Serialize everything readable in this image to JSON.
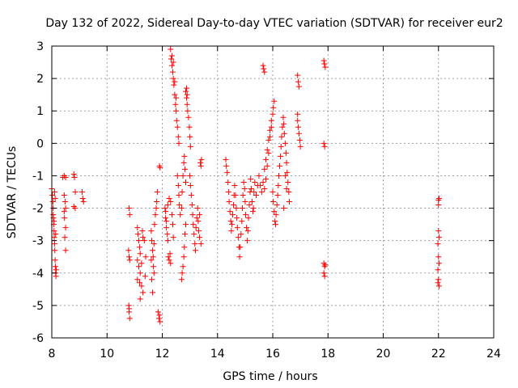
{
  "chart_data": {
    "type": "scatter",
    "title": "Day 132 of 2022, Sidereal Day-to-day VTEC variation (SDTVAR) for receiver eur2",
    "xlabel": "GPS time / hours",
    "ylabel": "SDTVAR / TECUs",
    "xlim": [
      8,
      24
    ],
    "ylim": [
      -6,
      3
    ],
    "xticks": [
      8,
      10,
      12,
      14,
      16,
      18,
      20,
      22,
      24
    ],
    "yticks": [
      -6,
      -5,
      -4,
      -3,
      -2,
      -1,
      0,
      1,
      2,
      3
    ],
    "grid": true,
    "marker": "plus",
    "color": "#ff0000",
    "series": [
      {
        "name": "SDTVAR",
        "points": [
          [
            8.0,
            -1.4
          ],
          [
            8.02,
            -1.6
          ],
          [
            8.04,
            -1.8
          ],
          [
            8.05,
            -2.0
          ],
          [
            8.06,
            -2.3
          ],
          [
            8.07,
            -2.5
          ],
          [
            8.08,
            -2.7
          ],
          [
            8.09,
            -2.9
          ],
          [
            8.1,
            -3.1
          ],
          [
            8.11,
            -3.3
          ],
          [
            8.12,
            -3.6
          ],
          [
            8.13,
            -3.8
          ],
          [
            8.14,
            -4.0
          ],
          [
            8.15,
            -4.1
          ],
          [
            8.05,
            -2.2
          ],
          [
            8.08,
            -2.4
          ],
          [
            8.1,
            -1.5
          ],
          [
            8.12,
            -1.7
          ],
          [
            8.14,
            -2.8
          ],
          [
            8.16,
            -3.9
          ],
          [
            8.4,
            -1.05
          ],
          [
            8.45,
            -1.0
          ],
          [
            8.5,
            -1.05
          ],
          [
            8.45,
            -1.6
          ],
          [
            8.48,
            -1.8
          ],
          [
            8.5,
            -2.0
          ],
          [
            8.46,
            -2.3
          ],
          [
            8.5,
            -2.6
          ],
          [
            8.47,
            -2.9
          ],
          [
            8.5,
            -3.3
          ],
          [
            8.45,
            -2.1
          ],
          [
            8.8,
            -0.95
          ],
          [
            8.82,
            -1.05
          ],
          [
            8.85,
            -1.5
          ],
          [
            8.8,
            -1.95
          ],
          [
            8.85,
            -2.0
          ],
          [
            9.1,
            -1.5
          ],
          [
            9.12,
            -1.7
          ],
          [
            9.15,
            -1.8
          ],
          [
            10.8,
            -2.0
          ],
          [
            10.82,
            -2.2
          ],
          [
            10.78,
            -3.3
          ],
          [
            10.8,
            -3.5
          ],
          [
            10.82,
            -3.6
          ],
          [
            10.79,
            -5.0
          ],
          [
            10.8,
            -5.2
          ],
          [
            10.82,
            -5.4
          ],
          [
            10.8,
            -5.1
          ],
          [
            11.1,
            -2.6
          ],
          [
            11.12,
            -2.8
          ],
          [
            11.15,
            -3.0
          ],
          [
            11.18,
            -3.2
          ],
          [
            11.2,
            -3.4
          ],
          [
            11.1,
            -3.6
          ],
          [
            11.15,
            -3.8
          ],
          [
            11.2,
            -4.0
          ],
          [
            11.1,
            -4.2
          ],
          [
            11.25,
            -4.4
          ],
          [
            11.3,
            -4.6
          ],
          [
            11.2,
            -4.8
          ],
          [
            11.35,
            -3.0
          ],
          [
            11.3,
            -2.9
          ],
          [
            11.4,
            -3.5
          ],
          [
            11.38,
            -4.1
          ],
          [
            11.25,
            -3.7
          ],
          [
            11.18,
            -4.3
          ],
          [
            11.28,
            -2.7
          ],
          [
            11.6,
            -2.7
          ],
          [
            11.62,
            -3.0
          ],
          [
            11.65,
            -3.3
          ],
          [
            11.6,
            -3.6
          ],
          [
            11.68,
            -3.8
          ],
          [
            11.7,
            -4.0
          ],
          [
            11.62,
            -4.2
          ],
          [
            11.65,
            -4.6
          ],
          [
            11.72,
            -2.5
          ],
          [
            11.75,
            -2.2
          ],
          [
            11.78,
            -2.0
          ],
          [
            11.8,
            -1.8
          ],
          [
            11.82,
            -1.5
          ],
          [
            11.7,
            -3.1
          ],
          [
            11.67,
            -3.5
          ],
          [
            11.9,
            -0.7
          ],
          [
            11.92,
            -0.75
          ],
          [
            11.9,
            -5.3
          ],
          [
            11.92,
            -5.5
          ],
          [
            11.88,
            -5.4
          ],
          [
            11.85,
            -5.2
          ],
          [
            12.1,
            -2.0
          ],
          [
            12.12,
            -2.3
          ],
          [
            12.15,
            -2.6
          ],
          [
            12.18,
            -2.8
          ],
          [
            12.2,
            -3.0
          ],
          [
            12.22,
            -3.5
          ],
          [
            12.25,
            -3.6
          ],
          [
            12.28,
            -3.4
          ],
          [
            12.3,
            -3.7
          ],
          [
            12.12,
            -2.1
          ],
          [
            12.15,
            -2.4
          ],
          [
            12.2,
            -1.9
          ],
          [
            12.25,
            -1.7
          ],
          [
            12.3,
            -1.8
          ],
          [
            12.35,
            -2.2
          ],
          [
            12.38,
            -2.5
          ],
          [
            12.4,
            -2.9
          ],
          [
            12.3,
            2.9
          ],
          [
            12.32,
            2.6
          ],
          [
            12.35,
            2.4
          ],
          [
            12.38,
            2.2
          ],
          [
            12.4,
            2.0
          ],
          [
            12.42,
            1.8
          ],
          [
            12.45,
            1.5
          ],
          [
            12.48,
            1.2
          ],
          [
            12.5,
            1.0
          ],
          [
            12.52,
            0.7
          ],
          [
            12.55,
            0.5
          ],
          [
            12.58,
            0.2
          ],
          [
            12.6,
            0.0
          ],
          [
            12.35,
            2.7
          ],
          [
            12.4,
            2.5
          ],
          [
            12.45,
            1.9
          ],
          [
            12.5,
            1.4
          ],
          [
            12.55,
            -1.0
          ],
          [
            12.58,
            -1.3
          ],
          [
            12.6,
            -1.6
          ],
          [
            12.62,
            -1.9
          ],
          [
            12.65,
            -2.2
          ],
          [
            12.7,
            -2.0
          ],
          [
            12.72,
            -1.5
          ],
          [
            12.75,
            -1.0
          ],
          [
            12.78,
            -0.6
          ],
          [
            12.8,
            -0.4
          ],
          [
            12.82,
            -0.8
          ],
          [
            12.85,
            -1.2
          ],
          [
            12.7,
            -4.2
          ],
          [
            12.72,
            -4.0
          ],
          [
            12.75,
            -3.8
          ],
          [
            12.78,
            -3.5
          ],
          [
            12.8,
            -3.2
          ],
          [
            12.82,
            -2.8
          ],
          [
            12.85,
            -2.5
          ],
          [
            12.85,
            1.6
          ],
          [
            12.88,
            1.4
          ],
          [
            12.9,
            1.2
          ],
          [
            12.92,
            1.0
          ],
          [
            12.95,
            0.8
          ],
          [
            12.98,
            0.5
          ],
          [
            13.0,
            0.2
          ],
          [
            13.02,
            -0.1
          ],
          [
            12.88,
            1.7
          ],
          [
            12.9,
            1.5
          ],
          [
            13.0,
            -1.0
          ],
          [
            13.02,
            -1.3
          ],
          [
            13.05,
            -1.6
          ],
          [
            13.08,
            -1.9
          ],
          [
            13.1,
            -2.2
          ],
          [
            13.12,
            -2.5
          ],
          [
            13.15,
            -2.8
          ],
          [
            13.18,
            -3.1
          ],
          [
            13.2,
            -3.3
          ],
          [
            13.22,
            -2.6
          ],
          [
            13.25,
            -2.3
          ],
          [
            13.28,
            -2.0
          ],
          [
            13.3,
            -2.4
          ],
          [
            13.32,
            -2.7
          ],
          [
            13.35,
            -2.2
          ],
          [
            13.38,
            -0.6
          ],
          [
            13.4,
            -0.7
          ],
          [
            13.42,
            -0.5
          ],
          [
            13.35,
            -2.9
          ],
          [
            13.4,
            -3.1
          ],
          [
            14.3,
            -0.5
          ],
          [
            14.32,
            -0.7
          ],
          [
            14.35,
            -0.9
          ],
          [
            14.38,
            -1.2
          ],
          [
            14.4,
            -1.5
          ],
          [
            14.42,
            -1.8
          ],
          [
            14.45,
            -2.1
          ],
          [
            14.48,
            -2.4
          ],
          [
            14.5,
            -2.7
          ],
          [
            14.52,
            -2.5
          ],
          [
            14.55,
            -2.2
          ],
          [
            14.58,
            -1.9
          ],
          [
            14.6,
            -1.6
          ],
          [
            14.62,
            -1.3
          ],
          [
            14.65,
            -1.6
          ],
          [
            14.68,
            -2.0
          ],
          [
            14.7,
            -2.3
          ],
          [
            14.72,
            -2.6
          ],
          [
            14.75,
            -2.9
          ],
          [
            14.78,
            -3.2
          ],
          [
            14.8,
            -3.5
          ],
          [
            14.82,
            -3.2
          ],
          [
            14.85,
            -2.8
          ],
          [
            14.88,
            -2.4
          ],
          [
            14.9,
            -2.0
          ],
          [
            14.92,
            -1.6
          ],
          [
            14.95,
            -1.2
          ],
          [
            14.98,
            -1.4
          ],
          [
            15.0,
            -1.8
          ],
          [
            15.02,
            -2.2
          ],
          [
            15.05,
            -2.6
          ],
          [
            15.08,
            -3.0
          ],
          [
            15.1,
            -2.7
          ],
          [
            15.12,
            -2.3
          ],
          [
            15.15,
            -1.9
          ],
          [
            15.18,
            -1.5
          ],
          [
            15.2,
            -1.1
          ],
          [
            15.22,
            -1.4
          ],
          [
            15.25,
            -1.8
          ],
          [
            15.28,
            -2.1
          ],
          [
            15.3,
            -2.0
          ],
          [
            15.32,
            -1.5
          ],
          [
            15.35,
            -1.2
          ],
          [
            15.4,
            -1.6
          ],
          [
            15.45,
            -1.3
          ],
          [
            15.65,
            2.4
          ],
          [
            15.67,
            2.3
          ],
          [
            15.7,
            2.2
          ],
          [
            15.5,
            -1.0
          ],
          [
            15.55,
            -1.3
          ],
          [
            15.6,
            -1.5
          ],
          [
            15.65,
            -1.2
          ],
          [
            15.7,
            -0.8
          ],
          [
            15.75,
            -0.5
          ],
          [
            15.8,
            -0.2
          ],
          [
            15.85,
            0.1
          ],
          [
            15.9,
            0.4
          ],
          [
            15.95,
            0.7
          ],
          [
            16.0,
            0.9
          ],
          [
            16.02,
            1.1
          ],
          [
            16.05,
            1.3
          ],
          [
            15.95,
            0.5
          ],
          [
            15.9,
            0.2
          ],
          [
            15.85,
            -0.3
          ],
          [
            15.8,
            -0.7
          ],
          [
            15.75,
            -1.1
          ],
          [
            15.7,
            -1.4
          ],
          [
            16.0,
            -1.5
          ],
          [
            16.02,
            -1.8
          ],
          [
            16.05,
            -2.1
          ],
          [
            16.08,
            -2.4
          ],
          [
            16.1,
            -2.5
          ],
          [
            16.12,
            -2.2
          ],
          [
            16.15,
            -1.9
          ],
          [
            16.18,
            -1.6
          ],
          [
            16.2,
            -1.3
          ],
          [
            16.22,
            -1.0
          ],
          [
            16.25,
            -0.7
          ],
          [
            16.28,
            -0.4
          ],
          [
            16.3,
            -0.1
          ],
          [
            16.32,
            0.2
          ],
          [
            16.35,
            0.5
          ],
          [
            16.38,
            0.8
          ],
          [
            16.4,
            0.6
          ],
          [
            16.42,
            0.3
          ],
          [
            16.45,
            0.0
          ],
          [
            16.48,
            -0.3
          ],
          [
            16.5,
            -0.6
          ],
          [
            16.52,
            -0.9
          ],
          [
            16.55,
            -1.2
          ],
          [
            16.58,
            -1.5
          ],
          [
            16.6,
            -1.8
          ],
          [
            16.45,
            -1.0
          ],
          [
            16.5,
            -1.4
          ],
          [
            16.4,
            -2.0
          ],
          [
            16.9,
            2.1
          ],
          [
            16.92,
            1.9
          ],
          [
            16.95,
            1.75
          ],
          [
            16.9,
            0.7
          ],
          [
            16.92,
            0.5
          ],
          [
            16.95,
            0.3
          ],
          [
            16.98,
            0.1
          ],
          [
            17.0,
            -0.1
          ],
          [
            16.9,
            0.9
          ],
          [
            17.85,
            2.55
          ],
          [
            17.87,
            2.45
          ],
          [
            17.9,
            2.35
          ],
          [
            17.85,
            0.0
          ],
          [
            17.88,
            -0.1
          ],
          [
            17.85,
            -3.7
          ],
          [
            17.88,
            -3.8
          ],
          [
            17.9,
            -3.75
          ],
          [
            17.85,
            -4.0
          ],
          [
            17.88,
            -4.1
          ],
          [
            22.0,
            -1.75
          ],
          [
            22.02,
            -1.7
          ],
          [
            22.0,
            -1.9
          ],
          [
            22.0,
            -2.7
          ],
          [
            22.02,
            -2.9
          ],
          [
            21.98,
            -3.1
          ],
          [
            22.0,
            -3.5
          ],
          [
            22.02,
            -3.7
          ],
          [
            21.98,
            -3.9
          ],
          [
            22.0,
            -4.2
          ],
          [
            22.02,
            -4.4
          ],
          [
            21.98,
            -4.3
          ]
        ]
      }
    ]
  }
}
